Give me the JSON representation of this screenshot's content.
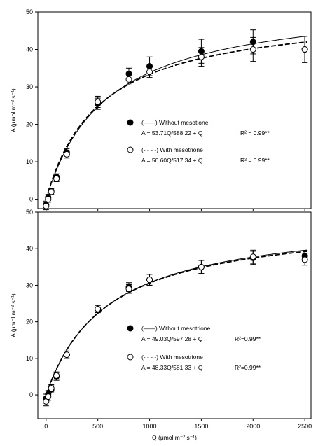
{
  "chart_data": [
    {
      "type": "scatter",
      "ylabel": "A (μmol m⁻² s⁻¹)",
      "ylim": [
        -2.5,
        50
      ],
      "xlim": [
        -80,
        2560
      ],
      "yticks": [
        "50",
        "40",
        "30",
        "20",
        "10",
        "0"
      ],
      "xticks": [],
      "series": [
        {
          "name": "(——) Without mesotione",
          "marker": "filled-circle",
          "line": "solid",
          "equation": "A = 53.71Q/588.22 + Q",
          "r2": "R² = 0.99**",
          "Amax": 53.71,
          "K": 588.22,
          "x": [
            0,
            20,
            50,
            100,
            200,
            500,
            800,
            1000,
            1500,
            2000,
            2500
          ],
          "y": [
            -1.5,
            0.5,
            2.2,
            6.0,
            12.5,
            25.5,
            33.5,
            35.5,
            39.5,
            42.0,
            40.0
          ],
          "err": [
            1.0,
            0.8,
            0.8,
            0.8,
            1.0,
            1.5,
            1.5,
            2.5,
            3.2,
            3.2,
            3.5
          ]
        },
        {
          "name": "(- - - -) With mesotrione",
          "marker": "open-circle",
          "line": "dashed",
          "equation": "A = 50.60Q/517.34 + Q",
          "r2": "R² = 0.99**",
          "Amax": 50.6,
          "K": 517.34,
          "x": [
            0,
            20,
            50,
            100,
            200,
            500,
            800,
            1000,
            1500,
            2000,
            2500
          ],
          "y": [
            -1.8,
            0.0,
            2.0,
            5.5,
            12.0,
            26.0,
            32.0,
            34.0,
            38.0,
            40.0,
            40.0
          ],
          "err": [
            1.0,
            0.8,
            0.8,
            0.8,
            1.0,
            1.5,
            1.5,
            1.5,
            2.5,
            3.2,
            3.5
          ]
        }
      ]
    },
    {
      "type": "scatter",
      "xlabel": "Q (μmol m⁻² s⁻¹)",
      "ylabel": "A (μmol m⁻² s⁻¹)",
      "ylim": [
        -6.5,
        50
      ],
      "xlim": [
        -80,
        2560
      ],
      "yticks": [
        "50",
        "40",
        "30",
        "20",
        "10",
        "0"
      ],
      "xticks": [
        "0",
        "500",
        "1000",
        "1500",
        "2000",
        "2500"
      ],
      "series": [
        {
          "name": "(——) Without mesotrione",
          "marker": "filled-circle",
          "line": "solid",
          "equation": "A = 49.03Q/597.28 + Q",
          "r2": "R²=0.99**",
          "Amax": 49.03,
          "K": 597.28,
          "x": [
            0,
            20,
            50,
            100,
            200,
            500,
            800,
            1000,
            1500,
            2000,
            2500
          ],
          "y": [
            -1.0,
            0.2,
            1.5,
            5.0,
            11.0,
            23.5,
            29.5,
            31.5,
            35.0,
            37.5,
            38.0
          ],
          "err": [
            1.2,
            1.0,
            1.0,
            1.0,
            1.0,
            1.0,
            1.2,
            1.5,
            1.8,
            1.8,
            1.5
          ]
        },
        {
          "name": "(- - - -) With mesotrione",
          "marker": "open-circle",
          "line": "dashed",
          "equation": "A = 48.33Q/581.33 + Q",
          "r2": "R²=0.99**",
          "Amax": 48.33,
          "K": 581.33,
          "x": [
            0,
            20,
            50,
            100,
            200,
            500,
            800,
            1000,
            1500,
            2000,
            2500
          ],
          "y": [
            -1.8,
            -0.5,
            1.8,
            5.3,
            11.0,
            23.5,
            29.0,
            31.5,
            35.0,
            37.8,
            37.0
          ],
          "err": [
            1.2,
            1.0,
            1.0,
            1.0,
            1.0,
            1.0,
            1.2,
            1.5,
            1.8,
            1.8,
            1.5
          ]
        }
      ]
    }
  ]
}
